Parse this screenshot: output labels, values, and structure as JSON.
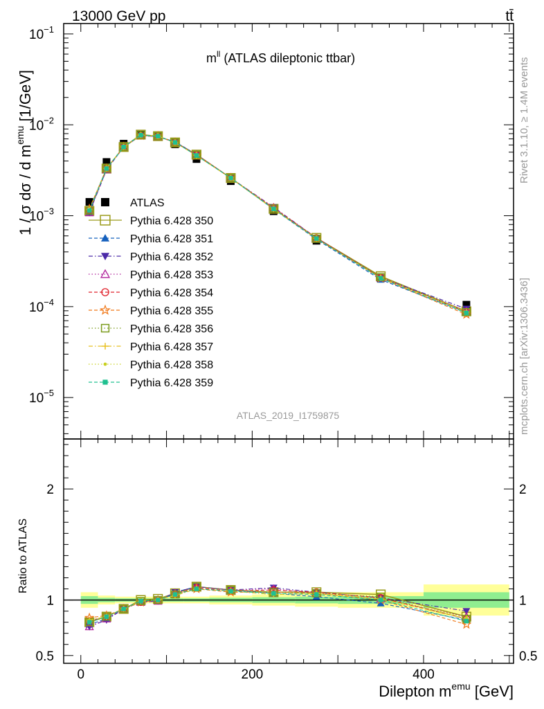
{
  "header": {
    "left": "13000 GeV pp",
    "right": "tt̄"
  },
  "side_labels": {
    "rivet": "Rivet 3.1.10, ≥ 1.4M events",
    "mcplots": "mcplots.cern.ch [arXiv:1306.3436]"
  },
  "analysis_id": "ATLAS_2019_I1759875",
  "colors": {
    "data": "#000000",
    "band_inner": "#90ee90",
    "band_outer": "#ffff99"
  },
  "chart_data": [
    {
      "type": "line",
      "panel": "main",
      "title": "m^ll (ATLAS dileptonic ttbar)",
      "title_main": "m",
      "title_sup": "ll",
      "title_rest": " (ATLAS dileptonic ttbar)",
      "ylabel": "1 / σ dσ / d m^emu [1/GeV]",
      "ylabel_parts": {
        "pre": "1 / σ  dσ / d m",
        "sup": "emu",
        "post": " [1/GeV]"
      },
      "yscale": "log",
      "xlim": [
        -20,
        505
      ],
      "ylim": [
        3.5e-06,
        0.13
      ],
      "y_ticks": [
        {
          "value": 1e-05,
          "exp": "−5"
        },
        {
          "value": 0.0001,
          "exp": "−4"
        },
        {
          "value": 0.001,
          "exp": "−3"
        },
        {
          "value": 0.01,
          "exp": "−2"
        },
        {
          "value": 0.1,
          "exp": "−1"
        }
      ],
      "y_tick_base": "10",
      "legend_position": "middle-left",
      "x": [
        10,
        30,
        50,
        70,
        90,
        110,
        135,
        175,
        225,
        275,
        350,
        450
      ],
      "series": [
        {
          "name": "ATLAS",
          "color": "#000000",
          "marker": "square-filled",
          "dash": "none",
          "values": [
            0.00142,
            0.0039,
            0.0062,
            0.0078,
            0.0075,
            0.0061,
            0.0042,
            0.0024,
            0.00112,
            0.00053,
            0.000205,
            0.000105
          ]
        },
        {
          "name": "Pythia 6.428 350",
          "color": "#9a9a1a",
          "marker": "square-open-large",
          "dash": "solid",
          "values": [
            0.00113,
            0.0033,
            0.0057,
            0.0078,
            0.0075,
            0.0064,
            0.0047,
            0.0026,
            0.00119,
            0.00057,
            0.000216,
            8.88e-05
          ]
        },
        {
          "name": "Pythia 6.428 351",
          "color": "#1560bd",
          "marker": "triangle-up-filled",
          "dash": "dashed",
          "values": [
            0.0011,
            0.0032,
            0.0057,
            0.0077,
            0.0074,
            0.0065,
            0.0047,
            0.0026,
            0.00118,
            0.00055,
            0.000198,
            8.61e-05
          ]
        },
        {
          "name": "Pythia 6.428 352",
          "color": "#4b2aa8",
          "marker": "triangle-down-filled",
          "dash": "dashdot",
          "values": [
            0.00108,
            0.0032,
            0.0057,
            0.0076,
            0.0074,
            0.0065,
            0.0047,
            0.0026,
            0.00124,
            0.00057,
            0.000209,
            9.45e-05
          ]
        },
        {
          "name": "Pythia 6.428 353",
          "color": "#b0209b",
          "marker": "triangle-up-open",
          "dash": "dotted",
          "values": [
            0.00108,
            0.0032,
            0.0057,
            0.0076,
            0.0074,
            0.0064,
            0.0047,
            0.0026,
            0.00123,
            0.00056,
            0.000207,
            8.93e-05
          ]
        },
        {
          "name": "Pythia 6.428 354",
          "color": "#e0202a",
          "marker": "circle-open",
          "dash": "dashed",
          "values": [
            0.00115,
            0.0033,
            0.0057,
            0.0076,
            0.0075,
            0.0064,
            0.0047,
            0.0026,
            0.00122,
            0.00057,
            0.00021,
            8.72e-05
          ]
        },
        {
          "name": "Pythia 6.428 355",
          "color": "#f07818",
          "marker": "star-open",
          "dash": "dashed",
          "values": [
            0.00119,
            0.0033,
            0.0057,
            0.0076,
            0.0075,
            0.0064,
            0.0046,
            0.0026,
            0.0012,
            0.00056,
            0.000205,
            8.19e-05
          ]
        },
        {
          "name": "Pythia 6.428 356",
          "color": "#7a9a1a",
          "marker": "square-open",
          "dash": "dotted",
          "values": [
            0.00114,
            0.0033,
            0.0057,
            0.0077,
            0.0075,
            0.0064,
            0.0047,
            0.0026,
            0.0012,
            0.00056,
            0.000211,
            8.72e-05
          ]
        },
        {
          "name": "Pythia 6.428 357",
          "color": "#e8c020",
          "marker": "plus-dot",
          "dash": "dashdot",
          "values": [
            0.00116,
            0.0033,
            0.0057,
            0.0077,
            0.0075,
            0.0064,
            0.0046,
            0.0026,
            0.00118,
            0.00056,
            0.000207,
            8.72e-05
          ]
        },
        {
          "name": "Pythia 6.428 358",
          "color": "#c8d020",
          "marker": "dot",
          "dash": "dotted",
          "values": [
            0.00116,
            0.0033,
            0.0057,
            0.0077,
            0.0075,
            0.0064,
            0.0046,
            0.0026,
            0.00118,
            0.00056,
            0.000207,
            8.82e-05
          ]
        },
        {
          "name": "Pythia 6.428 359",
          "color": "#20c090",
          "marker": "square-filled-small",
          "dash": "dashed",
          "values": [
            0.00114,
            0.0033,
            0.0057,
            0.0077,
            0.0075,
            0.0064,
            0.0046,
            0.0026,
            0.00119,
            0.00056,
            0.000205,
            8.5e-05
          ]
        }
      ]
    },
    {
      "type": "line",
      "panel": "ratio",
      "ylabel": "Ratio to ATLAS",
      "xlabel": "Dilepton m^emu [GeV]",
      "xlabel_parts": {
        "pre": "Dilepton m",
        "sup": "emu",
        "post": " [GeV]"
      },
      "xlim": [
        -20,
        505
      ],
      "ylim": [
        0.43,
        2.45
      ],
      "x_ticks": [
        0,
        200,
        400
      ],
      "y_ticks": [
        0.5,
        1,
        2
      ],
      "x": [
        10,
        30,
        50,
        70,
        90,
        110,
        135,
        175,
        225,
        275,
        350,
        450
      ],
      "bins": [
        [
          0,
          20
        ],
        [
          20,
          40
        ],
        [
          40,
          60
        ],
        [
          60,
          80
        ],
        [
          80,
          100
        ],
        [
          100,
          120
        ],
        [
          120,
          150
        ],
        [
          150,
          200
        ],
        [
          200,
          250
        ],
        [
          250,
          300
        ],
        [
          300,
          400
        ],
        [
          400,
          500
        ]
      ],
      "band_inner": [
        0.035,
        0.02,
        0.015,
        0.015,
        0.015,
        0.015,
        0.015,
        0.02,
        0.025,
        0.03,
        0.035,
        0.07
      ],
      "band_outer": [
        0.07,
        0.04,
        0.03,
        0.03,
        0.03,
        0.03,
        0.03,
        0.04,
        0.05,
        0.06,
        0.07,
        0.14
      ],
      "series": [
        {
          "name": "Pythia 6.428 350",
          "values": [
            0.8,
            0.85,
            0.92,
            1.0,
            1.01,
            1.06,
            1.12,
            1.09,
            1.07,
            1.07,
            1.05,
            0.85
          ]
        },
        {
          "name": "Pythia 6.428 351",
          "values": [
            0.78,
            0.83,
            0.92,
            0.99,
            0.99,
            1.07,
            1.12,
            1.09,
            1.06,
            1.03,
            0.97,
            0.82
          ]
        },
        {
          "name": "Pythia 6.428 352",
          "values": [
            0.76,
            0.82,
            0.92,
            0.98,
            0.99,
            1.07,
            1.12,
            1.09,
            1.11,
            1.07,
            1.02,
            0.9
          ]
        },
        {
          "name": "Pythia 6.428 353",
          "values": [
            0.76,
            0.83,
            0.92,
            0.98,
            0.99,
            1.06,
            1.12,
            1.09,
            1.1,
            1.06,
            1.01,
            0.85
          ]
        },
        {
          "name": "Pythia 6.428 354",
          "values": [
            0.81,
            0.85,
            0.92,
            0.98,
            1.0,
            1.05,
            1.11,
            1.08,
            1.09,
            1.07,
            1.02,
            0.83
          ]
        },
        {
          "name": "Pythia 6.428 355",
          "values": [
            0.84,
            0.86,
            0.92,
            0.98,
            1.0,
            1.05,
            1.1,
            1.07,
            1.07,
            1.06,
            1.0,
            0.78
          ]
        },
        {
          "name": "Pythia 6.428 356",
          "values": [
            0.8,
            0.85,
            0.92,
            0.99,
            1.0,
            1.05,
            1.12,
            1.09,
            1.07,
            1.06,
            1.03,
            0.83
          ]
        },
        {
          "name": "Pythia 6.428 357",
          "values": [
            0.82,
            0.85,
            0.92,
            0.99,
            1.0,
            1.04,
            1.1,
            1.08,
            1.05,
            1.06,
            1.01,
            0.83
          ]
        },
        {
          "name": "Pythia 6.428 358",
          "values": [
            0.82,
            0.85,
            0.92,
            0.99,
            1.0,
            1.05,
            1.1,
            1.08,
            1.05,
            1.06,
            1.01,
            0.84
          ]
        },
        {
          "name": "Pythia 6.428 359",
          "values": [
            0.8,
            0.85,
            0.92,
            0.99,
            1.0,
            1.05,
            1.1,
            1.08,
            1.06,
            1.05,
            1.0,
            0.81
          ]
        }
      ]
    }
  ]
}
